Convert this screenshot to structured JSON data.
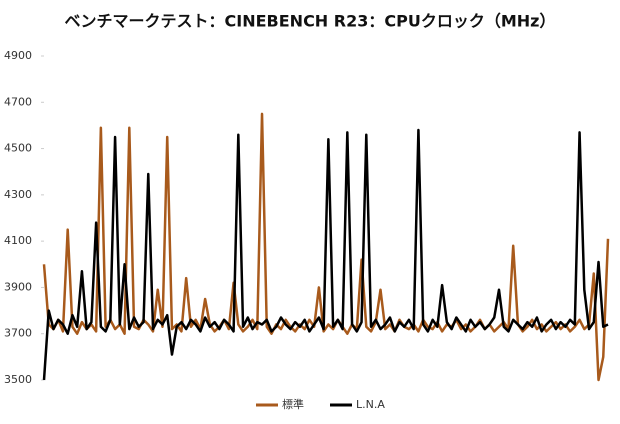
{
  "chart_data": {
    "type": "line",
    "title": "ベンチマークテスト：CINEBENCH R23：CPUクロック（MHz）",
    "ylim": [
      3500,
      4900
    ],
    "yticks": [
      3500,
      3700,
      3900,
      4100,
      4300,
      4500,
      4700,
      4900
    ],
    "grid": false,
    "legend": "bottom",
    "series": [
      {
        "name": "標準",
        "color": "#a85a1c",
        "values": [
          4000,
          3740,
          3720,
          3760,
          3710,
          4150,
          3730,
          3700,
          3750,
          3720,
          3740,
          3710,
          4590,
          3730,
          3760,
          3720,
          3740,
          3700,
          4590,
          3730,
          3720,
          3760,
          3740,
          3710,
          3890,
          3730,
          4550,
          3720,
          3740,
          3710,
          3940,
          3730,
          3760,
          3720,
          3850,
          3740,
          3710,
          3730,
          3760,
          3720,
          3920,
          3740,
          3710,
          3730,
          3760,
          3720,
          4650,
          3730,
          3700,
          3740,
          3720,
          3760,
          3730,
          3710,
          3740,
          3720,
          3760,
          3730,
          3900,
          3710,
          3740,
          3720,
          3760,
          3730,
          3700,
          3740,
          3720,
          4020,
          3730,
          3710,
          3750,
          3890,
          3720,
          3740,
          3710,
          3760,
          3730,
          3720,
          3740,
          3710,
          3760,
          3730,
          3720,
          3750,
          3710,
          3740,
          3730,
          3760,
          3720,
          3740,
          3710,
          3730,
          3760,
          3720,
          3740,
          3710,
          3730,
          3750,
          3720,
          4080,
          3740,
          3710,
          3730,
          3760,
          3720,
          3740,
          3710,
          3730,
          3750,
          3720,
          3740,
          3710,
          3730,
          3760,
          3720,
          3740,
          3960,
          3500,
          3600,
          4110
        ]
      },
      {
        "name": "L.N.A",
        "color": "#000000",
        "values": [
          3500,
          3800,
          3720,
          3760,
          3740,
          3700,
          3780,
          3730,
          3970,
          3720,
          3750,
          4180,
          3730,
          3710,
          3760,
          4550,
          3740,
          4000,
          3720,
          3770,
          3730,
          3750,
          4390,
          3720,
          3760,
          3740,
          3780,
          3610,
          3730,
          3750,
          3720,
          3760,
          3740,
          3710,
          3770,
          3730,
          3750,
          3720,
          3760,
          3740,
          3710,
          4560,
          3730,
          3770,
          3720,
          3750,
          3740,
          3760,
          3710,
          3730,
          3770,
          3740,
          3720,
          3750,
          3730,
          3760,
          3710,
          3740,
          3770,
          3720,
          4540,
          3730,
          3760,
          3720,
          4570,
          3740,
          3710,
          3750,
          4560,
          3730,
          3760,
          3720,
          3740,
          3770,
          3710,
          3750,
          3730,
          3760,
          3720,
          4580,
          3740,
          3710,
          3760,
          3730,
          3910,
          3750,
          3720,
          3770,
          3740,
          3710,
          3760,
          3730,
          3750,
          3720,
          3740,
          3770,
          3890,
          3730,
          3710,
          3760,
          3740,
          3720,
          3750,
          3730,
          3770,
          3710,
          3740,
          3760,
          3720,
          3750,
          3730,
          3760,
          3740,
          4570,
          3890,
          3720,
          3750,
          4010,
          3730,
          3740
        ]
      }
    ]
  }
}
